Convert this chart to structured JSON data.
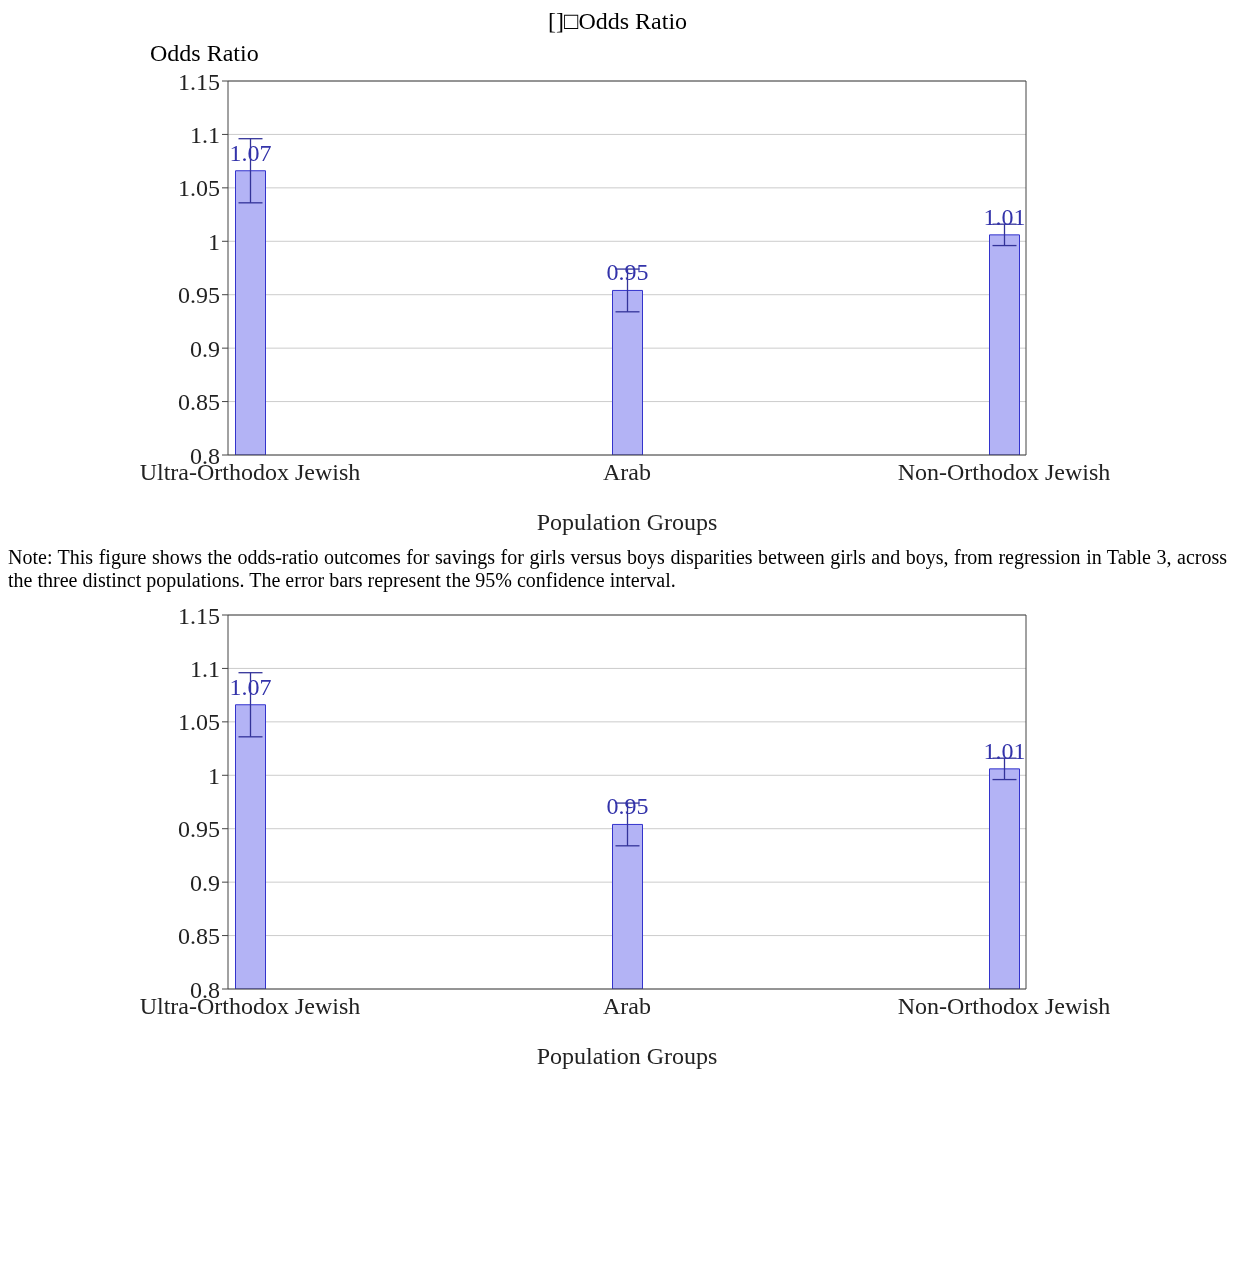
{
  "chart_data": [
    {
      "type": "bar",
      "title": "[]□Odds Ratio",
      "ylabel": "Odds Ratio",
      "xlabel": "Population Groups",
      "categories": [
        "Ultra-Orthodox Jewish",
        "Arab",
        "Non-Orthodox Jewish"
      ],
      "values": [
        1.066,
        0.954,
        1.006
      ],
      "errors": [
        0.03,
        0.02,
        0.01
      ],
      "value_labels": [
        "1.07",
        "0.95",
        "1.01"
      ],
      "color": "#b3b3f5",
      "ylim": [
        0.8,
        1.15
      ],
      "yticks": [
        0.8,
        0.85,
        0.9,
        0.95,
        1,
        1.05,
        1.1,
        1.15
      ],
      "grid": "y",
      "legend": false,
      "annotations": [
        "Note: This figure shows the odds-ratio outcomes for savings for girls versus boys disparities between girls and boys, from regression in Table 3, across the three distinct populations. The error bars represent the 95% confidence interval."
      ]
    },
    {
      "type": "bar",
      "xlabel": "Population Groups",
      "categories": [
        "Ultra-Orthodox Jewish",
        "Arab",
        "Non-Orthodox Jewish"
      ],
      "values": [
        1.066,
        0.954,
        1.006
      ],
      "errors": [
        0.03,
        0.02,
        0.01
      ],
      "value_labels": [
        "1.07",
        "0.95",
        "1.01"
      ],
      "color": "#b3b3f5",
      "ylim": [
        0.8,
        1.15
      ],
      "yticks": [
        0.8,
        0.85,
        0.9,
        0.95,
        1,
        1.05,
        1.1,
        1.15
      ],
      "grid": "y",
      "legend": false
    }
  ]
}
